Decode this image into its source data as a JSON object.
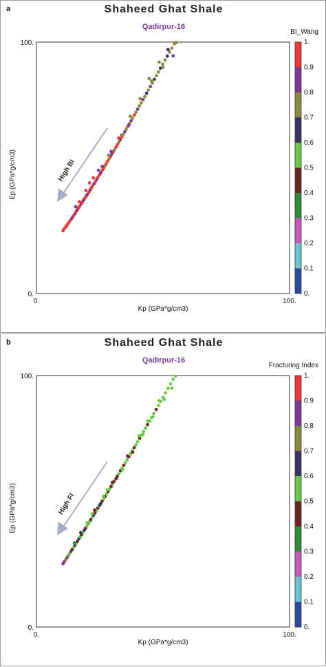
{
  "chart_data": [
    {
      "type": "scatter",
      "panel_label": "a",
      "title": "Shaheed Ghat Shale",
      "subtitle": "Qadirpur-16",
      "xlabel": "Kp (GPa*g/cm3)",
      "ylabel": "Ep (GPa*g/cm3)",
      "xlim": [
        0,
        100
      ],
      "ylim": [
        0,
        100
      ],
      "x_tick_labels": [
        "0.",
        "100."
      ],
      "y_tick_labels": [
        "0.",
        "100."
      ],
      "colorbar_title": "BI_Wang",
      "colorbar_ticks": [
        "0.",
        "0.1",
        "0.2",
        "0.3",
        "0.4",
        "0.5",
        "0.6",
        "0.7",
        "0.8",
        "0.9",
        "1."
      ],
      "colorbar_colors": [
        "#2e4aa0",
        "#6cc7cc",
        "#c35bb8",
        "#2e8a3c",
        "#6a2424",
        "#6cc74a",
        "#3a3462",
        "#8a8a40",
        "#7a3a9a",
        "#e83a3a"
      ],
      "arrow_label": "High BI",
      "dominant_color": "red/purple",
      "points": [
        [
          10.5,
          25.0,
          0.95
        ],
        [
          11.0,
          25.8,
          0.92
        ],
        [
          11.6,
          26.5,
          0.97
        ],
        [
          12.0,
          27.1,
          0.9
        ],
        [
          12.5,
          27.8,
          0.96
        ],
        [
          13.1,
          28.6,
          0.93
        ],
        [
          13.6,
          29.4,
          0.98
        ],
        [
          14.1,
          30.1,
          0.85
        ],
        [
          14.6,
          30.9,
          0.95
        ],
        [
          15.2,
          31.7,
          0.88
        ],
        [
          15.7,
          32.6,
          0.97
        ],
        [
          16.1,
          33.2,
          0.82
        ],
        [
          16.6,
          34.0,
          0.95
        ],
        [
          17.1,
          34.8,
          0.91
        ],
        [
          17.7,
          35.7,
          0.85
        ],
        [
          18.1,
          36.3,
          0.96
        ],
        [
          18.6,
          37.1,
          0.88
        ],
        [
          19.1,
          37.9,
          0.93
        ],
        [
          19.7,
          38.8,
          0.97
        ],
        [
          20.1,
          39.4,
          0.84
        ],
        [
          20.7,
          40.3,
          0.95
        ],
        [
          21.2,
          41.2,
          0.88
        ],
        [
          21.7,
          42.0,
          0.97
        ],
        [
          22.2,
          42.8,
          0.91
        ],
        [
          22.8,
          43.7,
          0.86
        ],
        [
          23.3,
          44.5,
          0.95
        ],
        [
          23.8,
          45.4,
          0.84
        ],
        [
          24.3,
          46.2,
          0.93
        ],
        [
          24.9,
          47.2,
          0.97
        ],
        [
          25.4,
          48.0,
          0.87
        ],
        [
          26.0,
          49.0,
          0.92
        ],
        [
          26.5,
          49.8,
          0.95
        ],
        [
          27.0,
          50.7,
          0.75
        ],
        [
          27.5,
          51.5,
          0.93
        ],
        [
          28.1,
          52.6,
          0.96
        ],
        [
          28.6,
          53.4,
          0.72
        ],
        [
          29.2,
          54.4,
          0.94
        ],
        [
          29.7,
          55.3,
          0.88
        ],
        [
          30.3,
          56.3,
          0.97
        ],
        [
          30.8,
          57.1,
          0.74
        ],
        [
          31.4,
          58.2,
          0.91
        ],
        [
          32.0,
          59.2,
          0.95
        ],
        [
          32.5,
          60.1,
          0.73
        ],
        [
          33.1,
          61.1,
          0.86
        ],
        [
          33.7,
          62.2,
          0.96
        ],
        [
          34.3,
          63.2,
          0.75
        ],
        [
          34.9,
          64.3,
          0.88
        ],
        [
          35.5,
          65.4,
          0.73
        ],
        [
          36.1,
          66.4,
          0.92
        ],
        [
          36.8,
          67.6,
          0.76
        ],
        [
          37.4,
          68.7,
          0.86
        ],
        [
          38.0,
          69.8,
          0.72
        ],
        [
          38.7,
          71.0,
          0.95
        ],
        [
          39.3,
          72.1,
          0.74
        ],
        [
          40.0,
          73.3,
          0.87
        ],
        [
          40.7,
          74.6,
          0.73
        ],
        [
          41.4,
          75.8,
          0.76
        ],
        [
          42.1,
          77.1,
          0.88
        ],
        [
          42.8,
          78.3,
          0.72
        ],
        [
          43.5,
          79.6,
          0.65
        ],
        [
          44.2,
          80.9,
          0.74
        ],
        [
          45.0,
          82.3,
          0.86
        ],
        [
          45.8,
          83.7,
          0.73
        ],
        [
          46.6,
          85.2,
          0.65
        ],
        [
          47.4,
          86.6,
          0.75
        ],
        [
          48.2,
          88.1,
          0.72
        ],
        [
          49.0,
          89.6,
          0.63
        ],
        [
          49.9,
          91.2,
          0.76
        ],
        [
          50.8,
          92.8,
          0.73
        ],
        [
          51.7,
          94.4,
          0.64
        ],
        [
          52.6,
          96.0,
          0.74
        ],
        [
          53.5,
          97.6,
          0.72
        ],
        [
          54.5,
          99.3,
          0.76
        ],
        [
          55.3,
          99.8,
          0.73
        ],
        [
          17.0,
          36.5,
          0.94
        ],
        [
          19.5,
          41.0,
          0.92
        ],
        [
          22.5,
          46.0,
          0.9
        ],
        [
          26.0,
          50.5,
          0.85
        ],
        [
          29.5,
          56.5,
          0.8
        ],
        [
          33.5,
          63.0,
          0.75
        ],
        [
          37.0,
          70.5,
          0.73
        ],
        [
          41.0,
          77.5,
          0.75
        ],
        [
          45.5,
          84.5,
          0.74
        ],
        [
          50.0,
          90.0,
          0.73
        ],
        [
          54.0,
          94.5,
          0.86
        ],
        [
          52.0,
          97.0,
          0.65
        ],
        [
          48.5,
          92.0,
          0.74
        ],
        [
          44.5,
          85.5,
          0.72
        ],
        [
          15.5,
          34.5,
          0.82
        ],
        [
          21.0,
          44.0,
          0.95
        ],
        [
          24.5,
          49.0,
          0.88
        ],
        [
          28.5,
          55.0,
          0.74
        ],
        [
          32.5,
          61.8,
          0.92
        ],
        [
          36.5,
          67.0,
          0.86
        ]
      ]
    },
    {
      "type": "scatter",
      "panel_label": "b",
      "title": "Shaheed Ghat Shale",
      "subtitle": "Qadirpur-16",
      "xlabel": "Kp (GPa*g/cm3)",
      "ylabel": "Ep (GPa*g/cm3)",
      "xlim": [
        0,
        100
      ],
      "ylim": [
        0,
        100
      ],
      "x_tick_labels": [
        "0.",
        "100."
      ],
      "y_tick_labels": [
        "0.",
        "100."
      ],
      "colorbar_title": "Fracturing Index",
      "colorbar_ticks": [
        "0.",
        "0.1",
        "0.2",
        "0.3",
        "0.4",
        "0.5",
        "0.6",
        "0.7",
        "0.8",
        "0.9",
        "1."
      ],
      "colorbar_colors": [
        "#2e4aa0",
        "#6cc7cc",
        "#c35bb8",
        "#2e8a3c",
        "#6a2424",
        "#6cc74a",
        "#3a3462",
        "#8a8a40",
        "#7a3a9a",
        "#e83a3a"
      ],
      "arrow_label": "High FI",
      "dominant_color": "green/brown",
      "points": [
        [
          10.5,
          25.2,
          0.85
        ],
        [
          11.0,
          26.0,
          0.82
        ],
        [
          11.6,
          26.8,
          0.75
        ],
        [
          12.1,
          27.6,
          0.86
        ],
        [
          12.6,
          28.4,
          0.72
        ],
        [
          13.1,
          29.2,
          0.55
        ],
        [
          13.6,
          30.0,
          0.83
        ],
        [
          14.1,
          30.8,
          0.45
        ],
        [
          14.7,
          31.7,
          0.55
        ],
        [
          15.2,
          32.5,
          0.65
        ],
        [
          15.7,
          33.3,
          0.55
        ],
        [
          16.2,
          34.1,
          0.45
        ],
        [
          16.8,
          35.1,
          0.65
        ],
        [
          17.3,
          35.9,
          0.55
        ],
        [
          17.8,
          36.7,
          0.45
        ],
        [
          18.3,
          37.5,
          0.55
        ],
        [
          18.9,
          38.5,
          0.65
        ],
        [
          19.4,
          39.3,
          0.45
        ],
        [
          19.9,
          40.1,
          0.55
        ],
        [
          20.5,
          41.1,
          0.75
        ],
        [
          21.0,
          41.9,
          0.55
        ],
        [
          21.5,
          42.7,
          0.45
        ],
        [
          22.1,
          43.7,
          0.55
        ],
        [
          22.6,
          44.5,
          0.65
        ],
        [
          23.2,
          45.5,
          0.45
        ],
        [
          23.7,
          46.3,
          0.55
        ],
        [
          24.3,
          47.3,
          0.45
        ],
        [
          24.8,
          48.1,
          0.55
        ],
        [
          25.4,
          49.1,
          0.65
        ],
        [
          26.0,
          50.1,
          0.45
        ],
        [
          26.5,
          50.9,
          0.55
        ],
        [
          27.1,
          51.9,
          0.45
        ],
        [
          27.7,
          52.9,
          0.55
        ],
        [
          28.3,
          53.9,
          0.45
        ],
        [
          28.9,
          54.9,
          0.55
        ],
        [
          29.5,
          55.9,
          0.45
        ],
        [
          30.1,
          56.9,
          0.55
        ],
        [
          30.7,
          57.9,
          0.45
        ],
        [
          31.3,
          58.9,
          0.55
        ],
        [
          31.9,
          59.9,
          0.45
        ],
        [
          32.5,
          60.9,
          0.55
        ],
        [
          33.2,
          62.1,
          0.45
        ],
        [
          33.8,
          63.1,
          0.55
        ],
        [
          34.5,
          64.3,
          0.45
        ],
        [
          35.1,
          65.3,
          0.55
        ],
        [
          35.8,
          66.5,
          0.55
        ],
        [
          36.5,
          67.7,
          0.45
        ],
        [
          37.2,
          68.9,
          0.55
        ],
        [
          37.9,
          70.1,
          0.55
        ],
        [
          38.6,
          71.3,
          0.45
        ],
        [
          39.3,
          72.5,
          0.55
        ],
        [
          40.0,
          73.7,
          0.55
        ],
        [
          40.8,
          75.1,
          0.45
        ],
        [
          41.5,
          76.3,
          0.55
        ],
        [
          42.3,
          77.7,
          0.55
        ],
        [
          43.1,
          79.1,
          0.55
        ],
        [
          43.9,
          80.5,
          0.45
        ],
        [
          44.7,
          81.9,
          0.55
        ],
        [
          45.5,
          83.3,
          0.55
        ],
        [
          46.4,
          84.9,
          0.55
        ],
        [
          47.3,
          86.5,
          0.45
        ],
        [
          48.2,
          88.1,
          0.55
        ],
        [
          49.1,
          89.7,
          0.55
        ],
        [
          50.0,
          91.3,
          0.55
        ],
        [
          51.0,
          93.1,
          0.55
        ],
        [
          52.0,
          94.9,
          0.55
        ],
        [
          53.0,
          96.7,
          0.55
        ],
        [
          54.0,
          98.5,
          0.55
        ],
        [
          55.0,
          99.8,
          0.55
        ],
        [
          17.5,
          37.5,
          0.65
        ],
        [
          20.0,
          41.5,
          0.55
        ],
        [
          23.0,
          46.5,
          0.45
        ],
        [
          26.5,
          52.0,
          0.55
        ],
        [
          30.0,
          57.5,
          0.45
        ],
        [
          34.0,
          62.5,
          0.55
        ],
        [
          38.0,
          69.5,
          0.45
        ],
        [
          42.0,
          76.5,
          0.55
        ],
        [
          46.0,
          83.5,
          0.55
        ],
        [
          50.5,
          90.5,
          0.55
        ],
        [
          53.5,
          95.0,
          0.55
        ],
        [
          48.5,
          90.0,
          0.55
        ],
        [
          44.0,
          82.0,
          0.55
        ],
        [
          40.5,
          76.0,
          0.55
        ],
        [
          36.0,
          68.0,
          0.45
        ],
        [
          22.0,
          45.0,
          0.55
        ],
        [
          25.0,
          48.5,
          0.65
        ],
        [
          28.0,
          54.5,
          0.55
        ],
        [
          31.5,
          59.0,
          0.45
        ],
        [
          15.0,
          33.5,
          0.35
        ]
      ]
    }
  ]
}
